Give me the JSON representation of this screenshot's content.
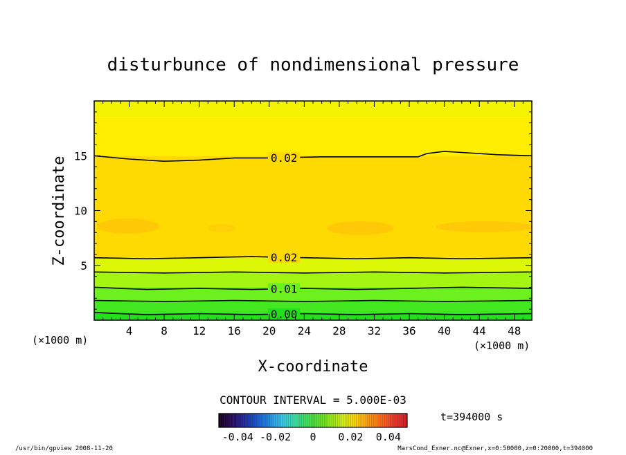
{
  "chart_data": {
    "type": "contour",
    "title": "disturbunce of nondimensional pressure",
    "xlabel": "X-coordinate",
    "ylabel": "Z-coordinate",
    "x_unit_left": "(×1000 m)",
    "x_unit_right": "(×1000 m)",
    "xlim": [
      0,
      50
    ],
    "ylim": [
      0,
      20
    ],
    "x_ticks": [
      4,
      8,
      12,
      16,
      20,
      24,
      28,
      32,
      36,
      40,
      44,
      48
    ],
    "y_ticks": [
      5,
      10,
      15
    ],
    "contours": [
      {
        "label": "0.00",
        "points": [
          [
            0,
            0.7
          ],
          [
            6,
            0.5
          ],
          [
            12,
            0.6
          ],
          [
            18,
            0.5
          ],
          [
            24,
            0.6
          ],
          [
            30,
            0.5
          ],
          [
            36,
            0.6
          ],
          [
            42,
            0.5
          ],
          [
            50,
            0.6
          ]
        ]
      },
      {
        "label": "",
        "points": [
          [
            0,
            1.8
          ],
          [
            8,
            1.7
          ],
          [
            16,
            1.8
          ],
          [
            24,
            1.7
          ],
          [
            32,
            1.8
          ],
          [
            40,
            1.7
          ],
          [
            50,
            1.8
          ]
        ]
      },
      {
        "label": "0.01",
        "points": [
          [
            0,
            3.0
          ],
          [
            6,
            2.8
          ],
          [
            12,
            2.9
          ],
          [
            18,
            2.8
          ],
          [
            24,
            2.9
          ],
          [
            30,
            2.8
          ],
          [
            36,
            2.9
          ],
          [
            42,
            3.0
          ],
          [
            50,
            2.9
          ]
        ]
      },
      {
        "label": "",
        "points": [
          [
            0,
            4.4
          ],
          [
            8,
            4.3
          ],
          [
            16,
            4.4
          ],
          [
            24,
            4.3
          ],
          [
            32,
            4.4
          ],
          [
            40,
            4.3
          ],
          [
            50,
            4.4
          ]
        ]
      },
      {
        "label": "0.02",
        "points": [
          [
            0,
            5.7
          ],
          [
            6,
            5.6
          ],
          [
            12,
            5.7
          ],
          [
            18,
            5.8
          ],
          [
            24,
            5.7
          ],
          [
            30,
            5.6
          ],
          [
            36,
            5.7
          ],
          [
            42,
            5.6
          ],
          [
            50,
            5.7
          ]
        ]
      },
      {
        "label": "0.02",
        "points": [
          [
            0,
            15.0
          ],
          [
            4,
            14.7
          ],
          [
            8,
            14.5
          ],
          [
            12,
            14.6
          ],
          [
            16,
            14.8
          ],
          [
            20,
            14.8
          ],
          [
            26,
            14.9
          ],
          [
            32,
            14.9
          ],
          [
            37,
            14.9
          ],
          [
            38,
            15.2
          ],
          [
            40,
            15.4
          ],
          [
            42,
            15.3
          ],
          [
            46,
            15.1
          ],
          [
            50,
            15.0
          ]
        ]
      }
    ],
    "fill_bands": [
      {
        "z": [
          0,
          0.7
        ],
        "color": "#22e01a"
      },
      {
        "z": [
          0.7,
          1.8
        ],
        "color": "#44e820"
      },
      {
        "z": [
          1.8,
          3.0
        ],
        "color": "#6cf01e"
      },
      {
        "z": [
          3.0,
          4.4
        ],
        "color": "#a4f512"
      },
      {
        "z": [
          4.4,
          5.7
        ],
        "color": "#dcf806"
      },
      {
        "z": [
          5.7,
          15.0
        ],
        "color": "#ffd902"
      },
      {
        "z": [
          15.0,
          18.5
        ],
        "color": "#ffee00"
      },
      {
        "z": [
          18.5,
          20
        ],
        "color": "#f4f400"
      }
    ],
    "contour_interval": "CONTOUR INTERVAL = 5.000E-03",
    "colorbar": {
      "range": [
        -0.05,
        0.05
      ],
      "tick_labels": [
        "-0.04",
        "-0.02",
        "0",
        "0.02",
        "0.04"
      ],
      "tick_values": [
        -0.04,
        -0.02,
        0,
        0.02,
        0.04
      ],
      "colors": [
        "#15001f",
        "#2a0a60",
        "#1f2aa0",
        "#1a5ad0",
        "#1f8ee6",
        "#3ac6ea",
        "#38e0a8",
        "#3fe05a",
        "#5ae428",
        "#9aeb18",
        "#d8f010",
        "#ffd008",
        "#ff9a0e",
        "#ff6a1a",
        "#f03a2a",
        "#d0202a"
      ]
    },
    "time_label": "t=394000 s"
  },
  "footer": {
    "left": "/usr/bin/gpview   2008-11-20",
    "right": "MarsCond_Exner.nc@Exner,x=0:50000,z=0:20000,t=394000"
  }
}
